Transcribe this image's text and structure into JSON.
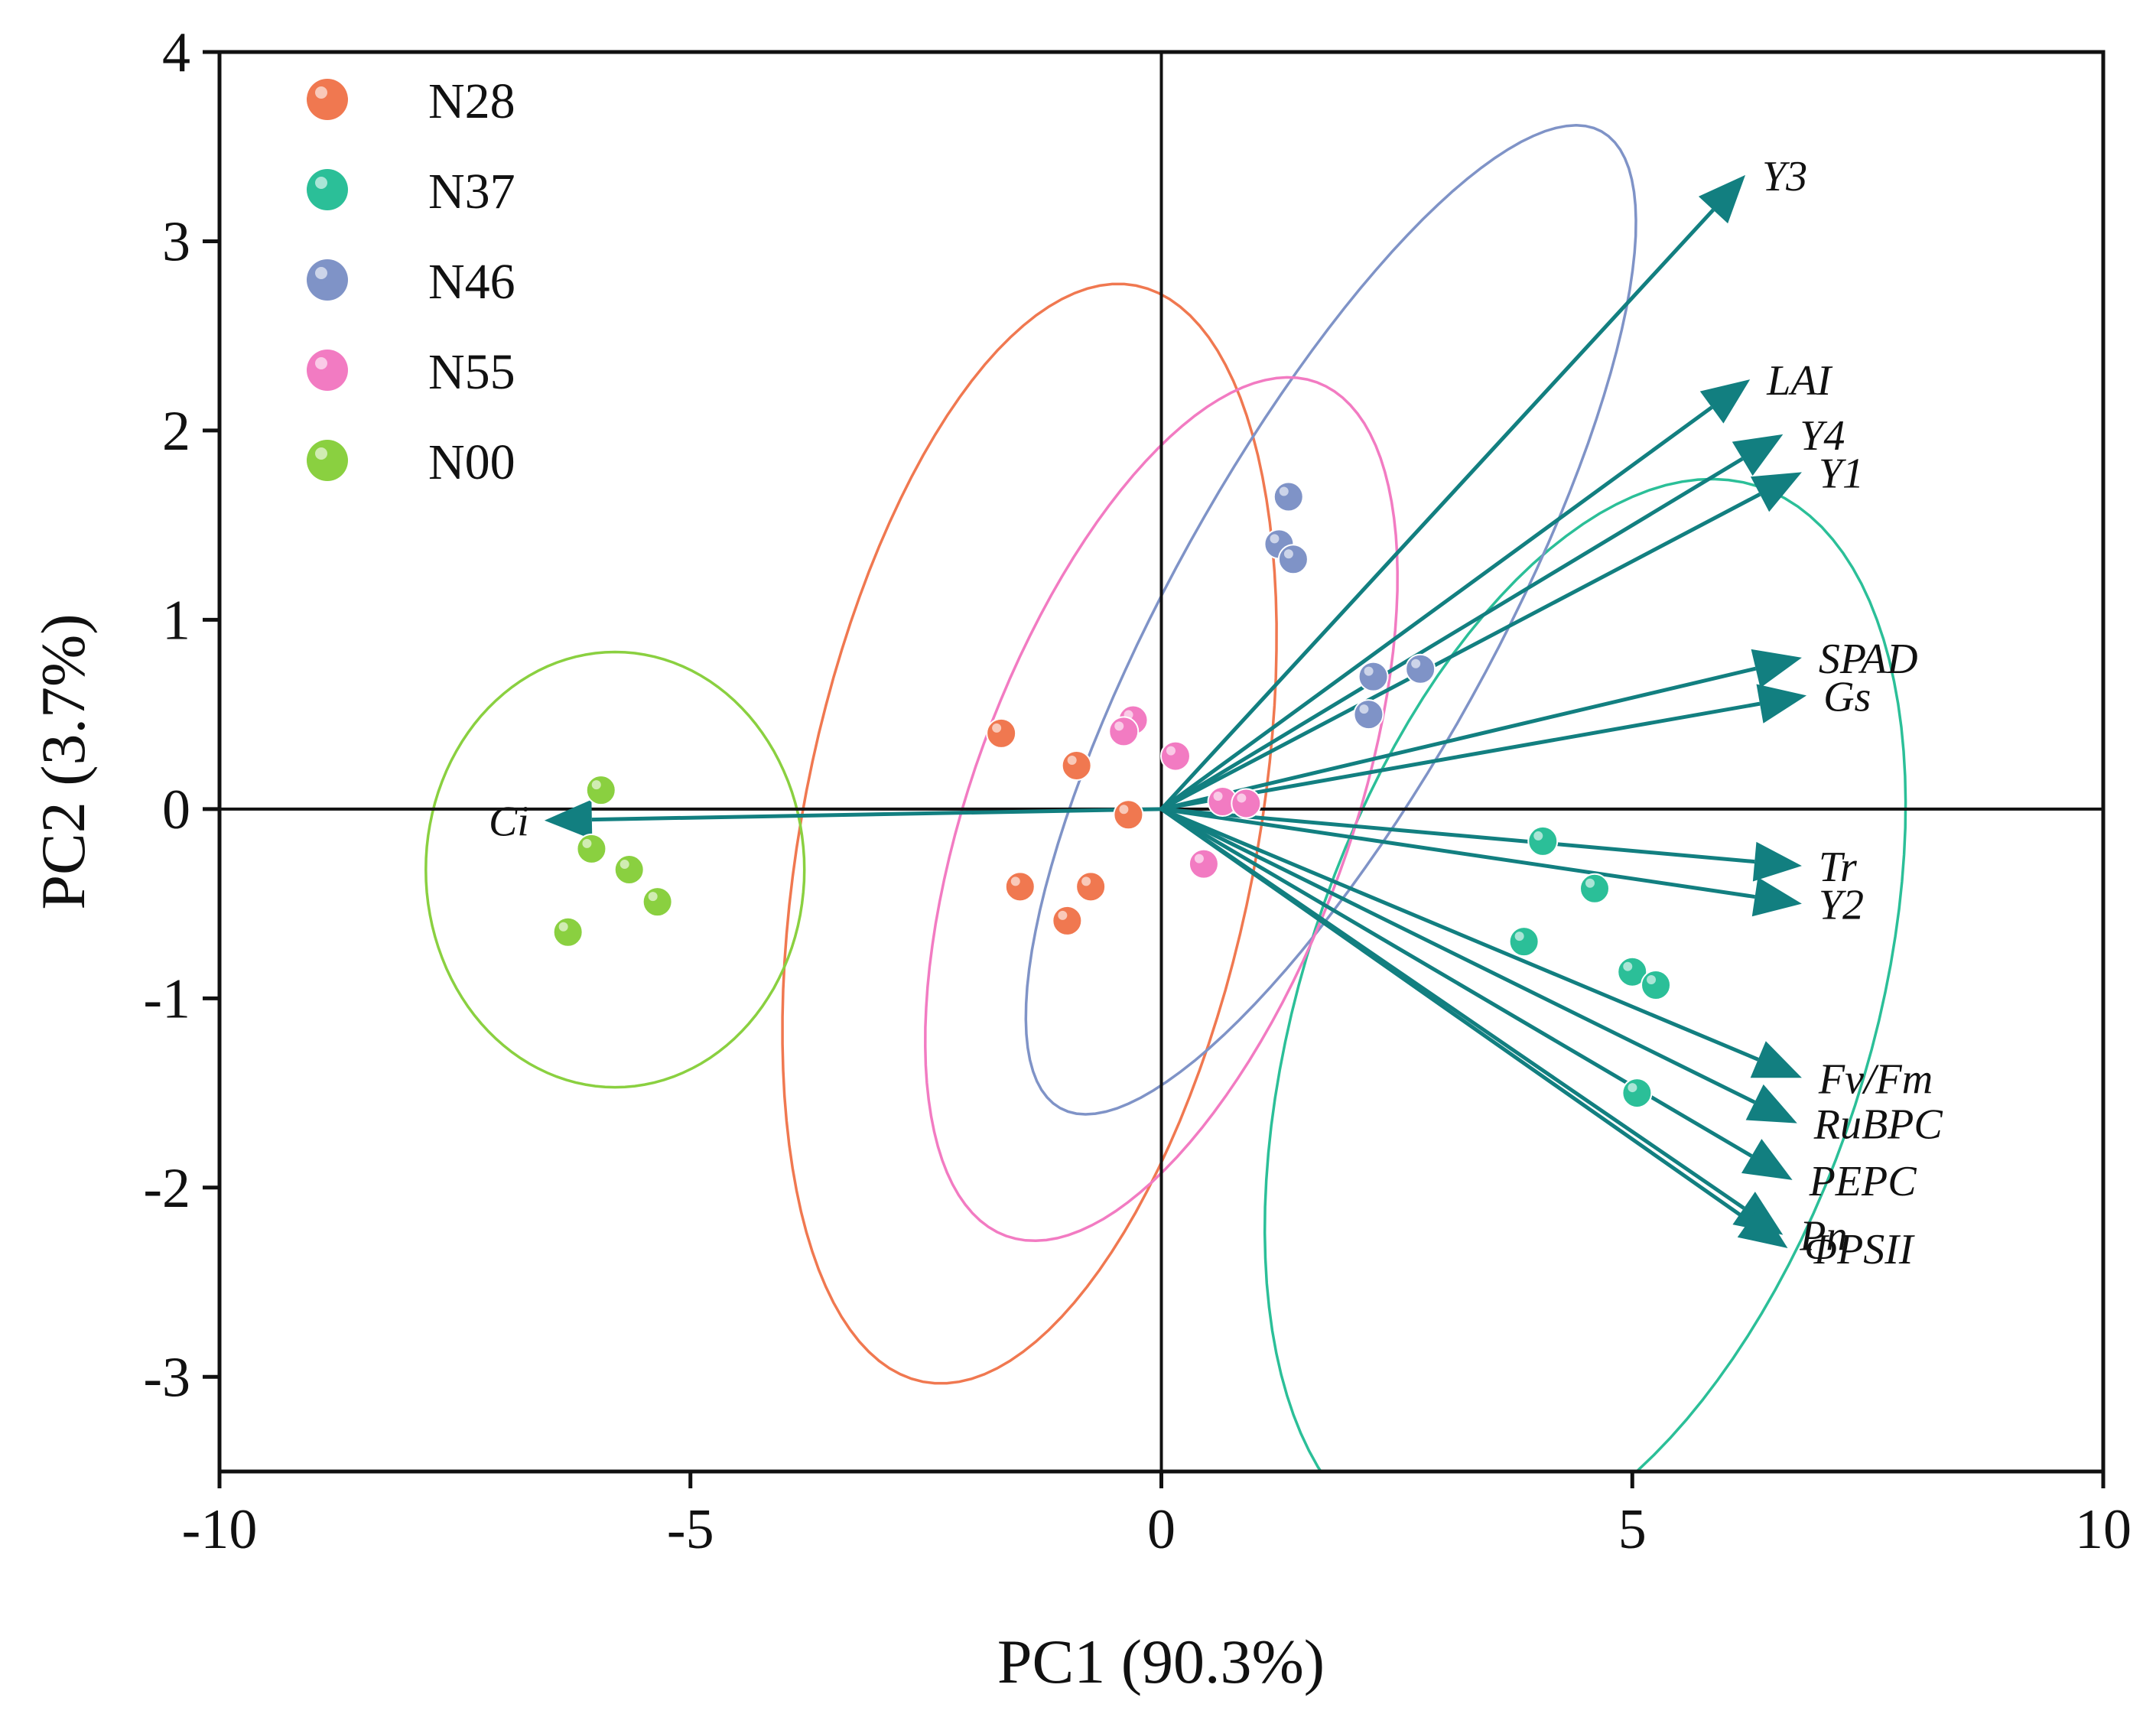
{
  "chart_data": {
    "type": "scatter",
    "subtype": "pca-biplot",
    "title": "",
    "xlabel": "PC1 (90.3%)",
    "ylabel": "PC2 (3.7%)",
    "xlim": [
      -10,
      10
    ],
    "ylim": [
      -3.5,
      4
    ],
    "x_ticks": [
      -10,
      -5,
      0,
      5,
      10
    ],
    "y_ticks": [
      -3,
      -2,
      -1,
      0,
      1,
      2,
      3,
      4
    ],
    "x_tick_labels": [
      "-10",
      "-5",
      "0",
      "5",
      "10"
    ],
    "y_tick_labels": [
      "-3",
      "-2",
      "-1",
      "0",
      "1",
      "2",
      "3",
      "4"
    ],
    "grid": false,
    "legend_position": "top-left",
    "groups": [
      {
        "name": "N28",
        "color": "#f07850",
        "points": [
          [
            -1.7,
            0.4
          ],
          [
            -0.9,
            0.23
          ],
          [
            -0.35,
            -0.03
          ],
          [
            -1.5,
            -0.41
          ],
          [
            -0.75,
            -0.41
          ],
          [
            -1.0,
            -0.59
          ]
        ],
        "ellipse": {
          "center": [
            -1.4,
            -0.13
          ],
          "rx": 2.95,
          "ry": 1.2,
          "angle_deg": 79
        }
      },
      {
        "name": "N37",
        "color": "#2bbf98",
        "points": [
          [
            4.05,
            -0.17
          ],
          [
            4.6,
            -0.42
          ],
          [
            3.85,
            -0.7
          ],
          [
            5.0,
            -0.86
          ],
          [
            5.25,
            -0.93
          ],
          [
            5.05,
            -1.5
          ]
        ],
        "ellipse": {
          "center": [
            4.5,
            -1.1
          ],
          "rx": 2.95,
          "ry": 1.5,
          "angle_deg": 72
        }
      },
      {
        "name": "N46",
        "color": "#7f93c7",
        "points": [
          [
            1.35,
            1.65
          ],
          [
            1.25,
            1.4
          ],
          [
            1.4,
            1.32
          ],
          [
            2.25,
            0.7
          ],
          [
            2.75,
            0.74
          ],
          [
            2.2,
            0.5
          ]
        ],
        "ellipse": {
          "center": [
            1.8,
            1.0
          ],
          "rx": 2.95,
          "ry": 0.85,
          "angle_deg": 61
        }
      },
      {
        "name": "N55",
        "color": "#f27bc2",
        "points": [
          [
            -0.3,
            0.47
          ],
          [
            -0.4,
            0.41
          ],
          [
            0.15,
            0.28
          ],
          [
            0.65,
            0.04
          ],
          [
            0.9,
            0.03
          ],
          [
            0.45,
            -0.29
          ]
        ],
        "ellipse": {
          "center": [
            0.0,
            0.0
          ],
          "rx": 2.4,
          "ry": 1.0,
          "angle_deg": 70
        }
      },
      {
        "name": "N00",
        "color": "#8ad040",
        "points": [
          [
            -5.95,
            0.1
          ],
          [
            -6.05,
            -0.21
          ],
          [
            -5.65,
            -0.32
          ],
          [
            -5.35,
            -0.49
          ],
          [
            -6.3,
            -0.65
          ]
        ],
        "ellipse": {
          "center": [
            -5.8,
            -0.32
          ],
          "rx": 1.0,
          "ry": 1.15,
          "angle_deg": 0
        }
      }
    ],
    "loadings": {
      "color": "#127f80",
      "vectors": [
        {
          "label": "Y3",
          "x": 6.2,
          "y": 3.35
        },
        {
          "label": "LAI",
          "x": 6.25,
          "y": 2.27
        },
        {
          "label": "Y4",
          "x": 6.6,
          "y": 1.98
        },
        {
          "label": "Y1",
          "x": 6.8,
          "y": 1.78
        },
        {
          "label": "SPAD",
          "x": 6.8,
          "y": 0.8
        },
        {
          "label": "Gs",
          "x": 6.85,
          "y": 0.6
        },
        {
          "label": "Tr",
          "x": 6.8,
          "y": -0.3
        },
        {
          "label": "Y2",
          "x": 6.8,
          "y": -0.5
        },
        {
          "label": "Fv/Fm",
          "x": 6.8,
          "y": -1.42
        },
        {
          "label": "RuBPC",
          "x": 6.75,
          "y": -1.66
        },
        {
          "label": "PEPC",
          "x": 6.7,
          "y": -1.96
        },
        {
          "label": "Pn",
          "x": 6.6,
          "y": -2.25
        },
        {
          "label": "ΦPSII",
          "x": 6.65,
          "y": -2.32
        },
        {
          "label": "Ci",
          "x": -6.55,
          "y": -0.06
        }
      ]
    }
  }
}
